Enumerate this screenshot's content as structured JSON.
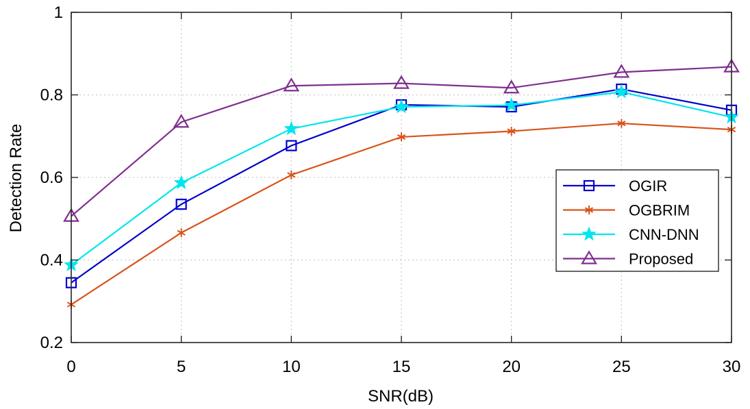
{
  "chart_data": {
    "type": "line",
    "title": "",
    "xlabel": "SNR(dB)",
    "ylabel": "Detection Rate",
    "x": [
      0,
      5,
      10,
      15,
      20,
      25,
      30
    ],
    "xlim": [
      0,
      30
    ],
    "ylim": [
      0.2,
      1
    ],
    "xticks": [
      "0",
      "5",
      "10",
      "15",
      "20",
      "25",
      "30"
    ],
    "yticks": [
      "0.2",
      "0.4",
      "0.6",
      "0.8",
      "1"
    ],
    "grid": true,
    "legend_position": "center-right",
    "series": [
      {
        "name": "OGIR",
        "color": "#0000cc",
        "marker": "square",
        "values": [
          0.345,
          0.535,
          0.677,
          0.776,
          0.771,
          0.814,
          0.763
        ]
      },
      {
        "name": "OGBRIM",
        "color": "#d95319",
        "marker": "asterisk",
        "values": [
          0.292,
          0.466,
          0.606,
          0.698,
          0.712,
          0.731,
          0.716
        ]
      },
      {
        "name": "CNN-DNN",
        "color": "#00e5ee",
        "marker": "pentagram",
        "values": [
          0.388,
          0.587,
          0.718,
          0.771,
          0.775,
          0.807,
          0.746
        ]
      },
      {
        "name": "Proposed",
        "color": "#7e2f8e",
        "marker": "triangle",
        "values": [
          0.506,
          0.734,
          0.822,
          0.828,
          0.817,
          0.855,
          0.868
        ]
      }
    ]
  }
}
